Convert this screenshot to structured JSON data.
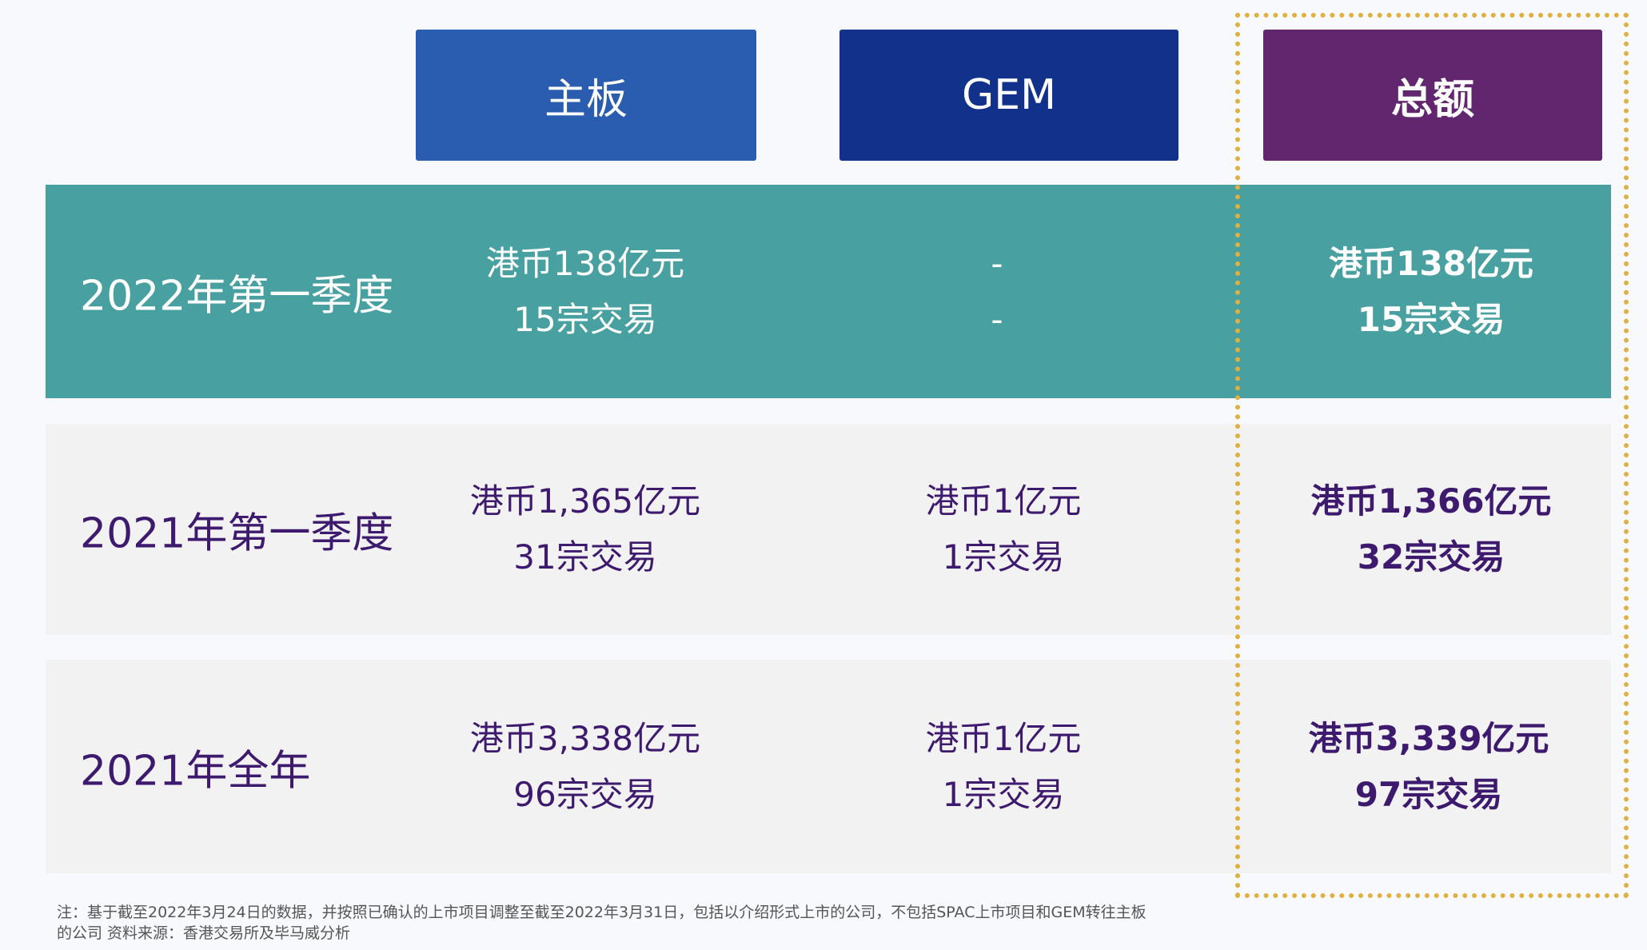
{
  "headers": {
    "main": "主板",
    "gem": "GEM",
    "total": "总额"
  },
  "colors": {
    "main": "#2a5db0",
    "gem": "#12318a",
    "total": "#62266e",
    "highlight_row": "#48a0a0",
    "row_bg": "#f2f2f2",
    "text": "#3d1a6e",
    "dashed_border": "#e0b040"
  },
  "rows": [
    {
      "label": "2022年第一季度",
      "main": [
        "港币138亿元",
        "15宗交易"
      ],
      "gem": [
        "-",
        "-"
      ],
      "total": [
        "港币138亿元",
        "15宗交易"
      ]
    },
    {
      "label": "2021年第一季度",
      "main": [
        "港币1,365亿元",
        "31宗交易"
      ],
      "gem": [
        "港币1亿元",
        "1宗交易"
      ],
      "total": [
        "港币1,366亿元",
        "32宗交易"
      ]
    },
    {
      "label": "2021年全年",
      "main": [
        "港币3,338亿元",
        "96宗交易"
      ],
      "gem": [
        "港币1亿元",
        "1宗交易"
      ],
      "total": [
        "港币3,339亿元",
        "97宗交易"
      ]
    }
  ],
  "footnote": {
    "line1": "注：基于截至2022年3月24日的数据，并按照已确认的上市项目调整至截至2022年3月31日，包括以介绍形式上市的公司，不包括SPAC上市项目和GEM转往主板",
    "line2": "的公司 资料来源：香港交易所及毕马威分析"
  }
}
